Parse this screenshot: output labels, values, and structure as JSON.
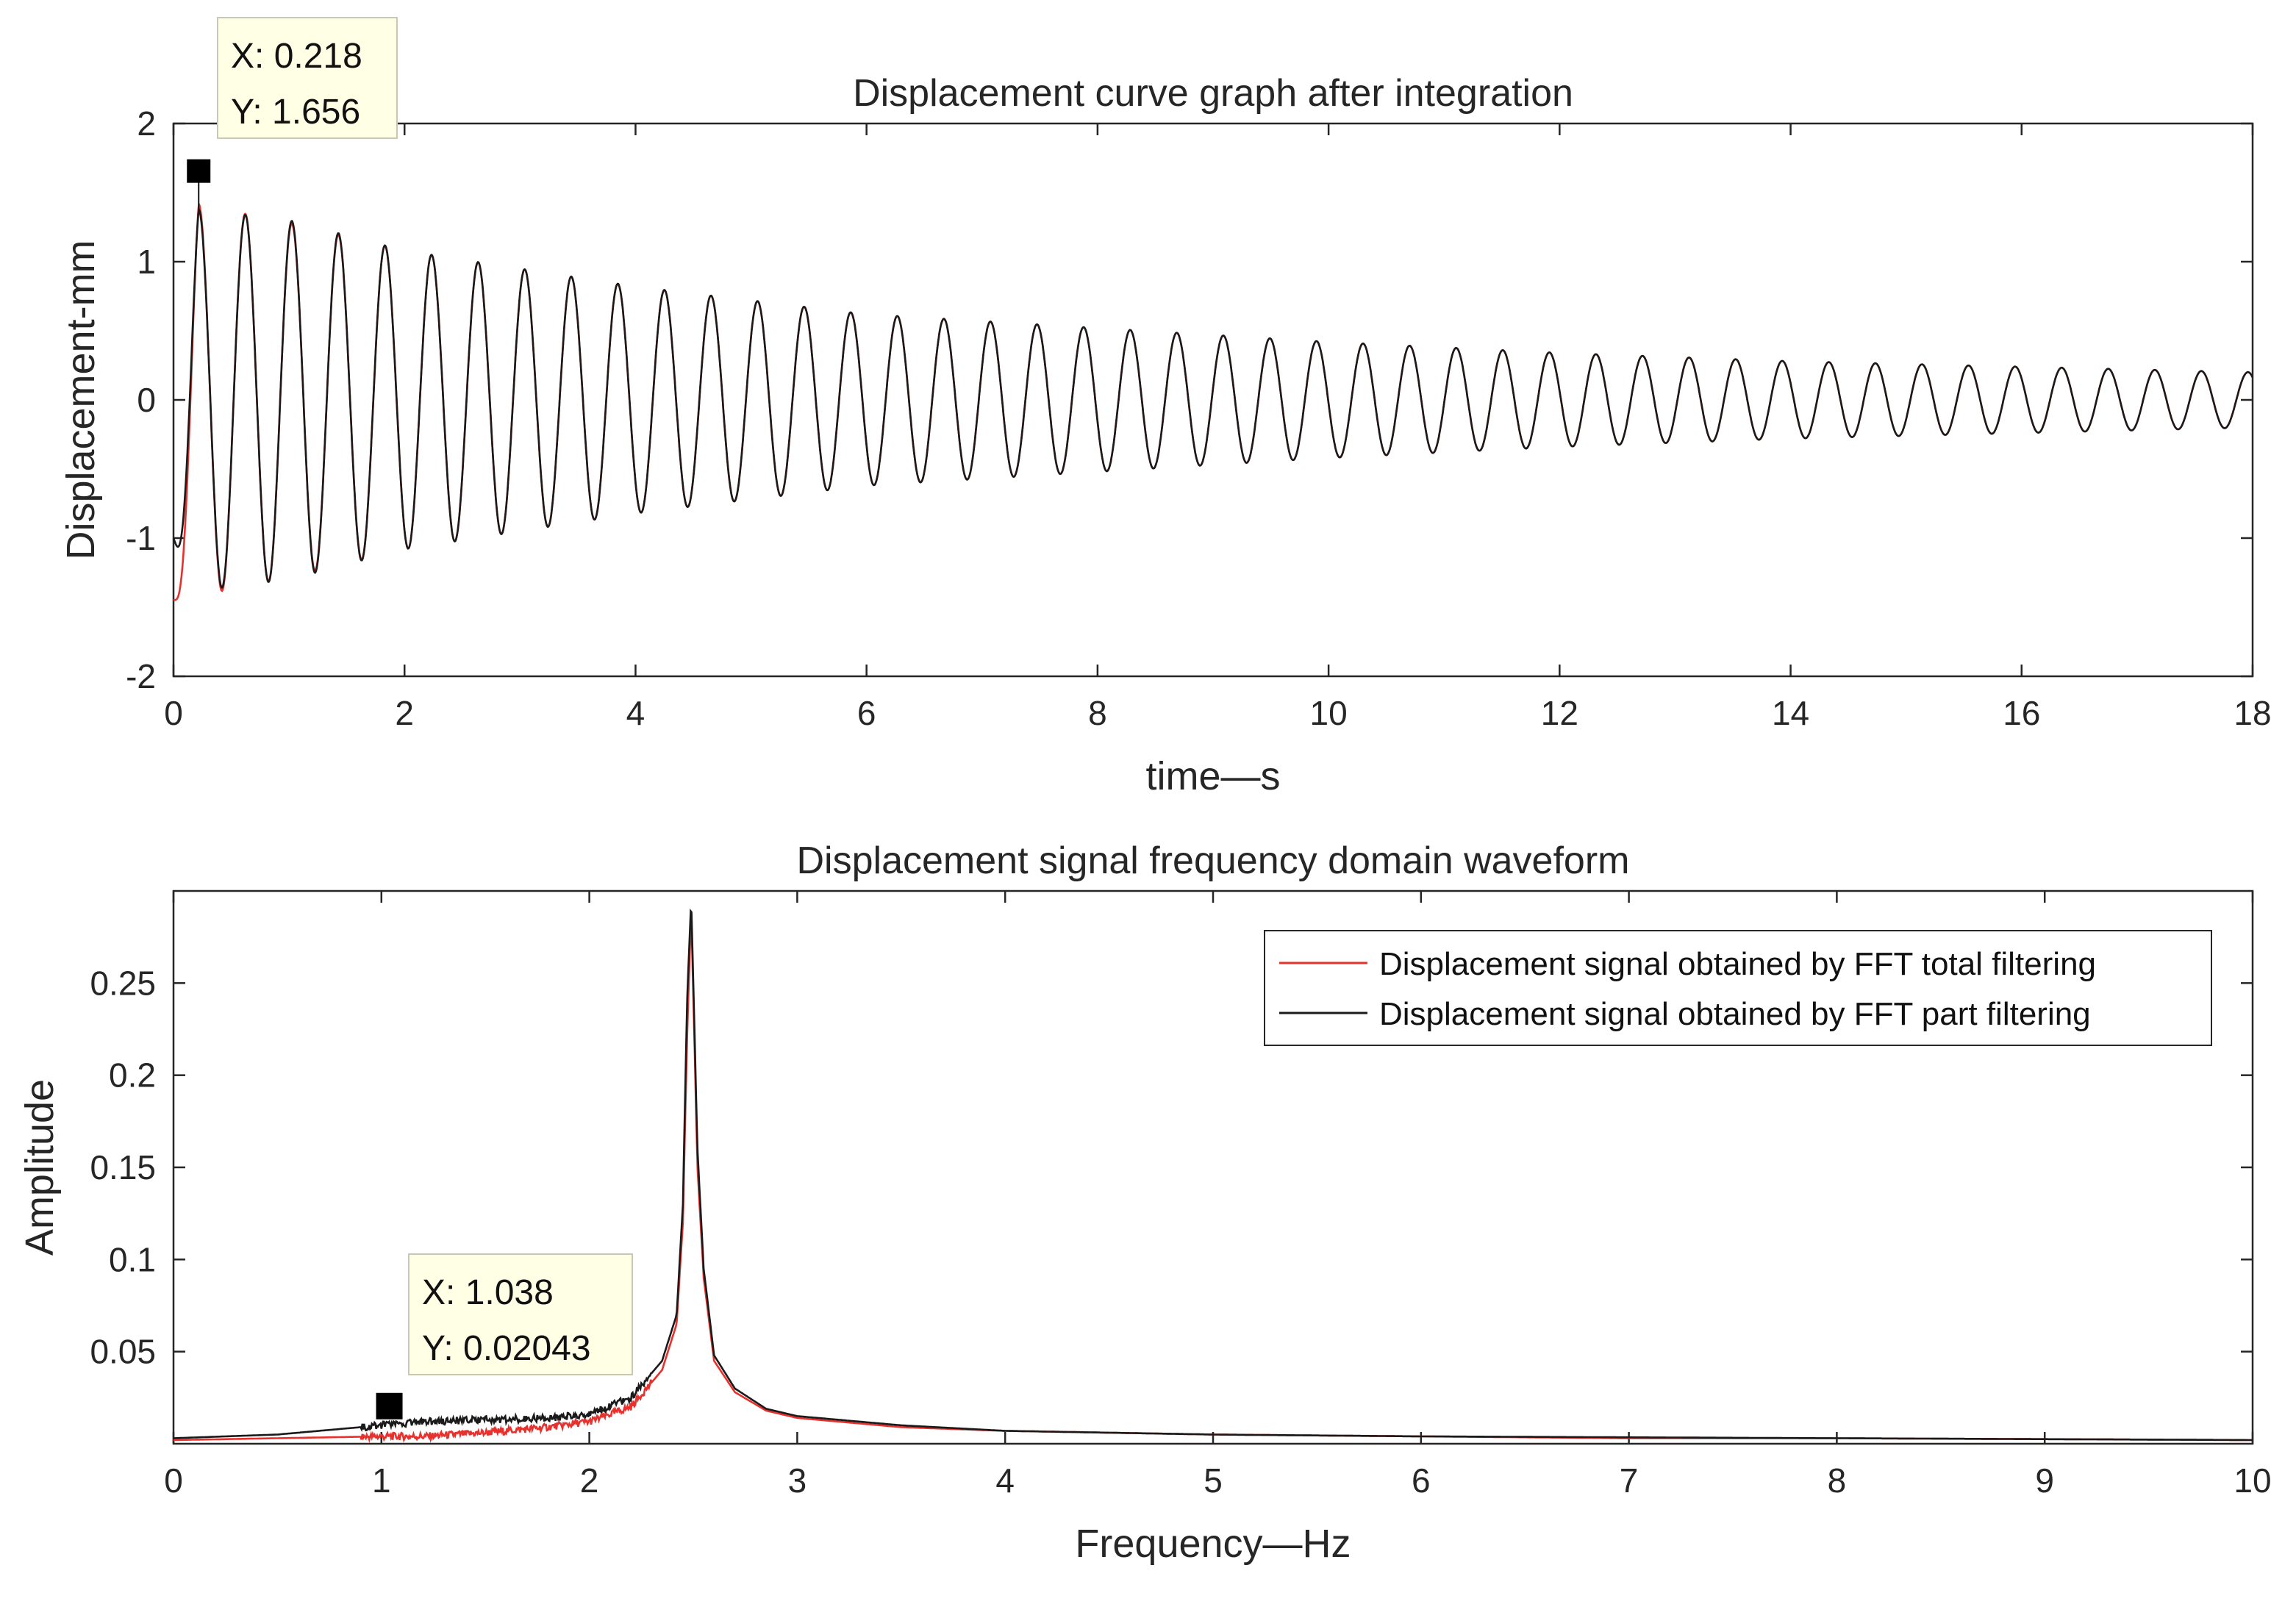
{
  "chart_data": [
    {
      "type": "line",
      "title": "Displacement curve graph after integration",
      "xlabel": "time—s",
      "ylabel": "Displacement-mm",
      "xlim": [
        0,
        18
      ],
      "ylim": [
        -2,
        2
      ],
      "xticks": [
        0,
        2,
        4,
        6,
        8,
        10,
        12,
        14,
        16,
        18
      ],
      "yticks": [
        -2,
        -1,
        0,
        1,
        2
      ],
      "grid": false,
      "series": [
        {
          "name": "Displacement signal obtained by FFT total filtering",
          "color": "#e8312d",
          "model": "damped_sinusoid",
          "frequency_hz": 2.48,
          "start_value": -1.45,
          "envelope_amplitude_mm": [
            [
              0.2,
              1.42
            ],
            [
              1.0,
              1.28
            ],
            [
              2.0,
              1.08
            ],
            [
              4.0,
              0.82
            ],
            [
              6.0,
              0.62
            ],
            [
              8.0,
              0.52
            ],
            [
              10.0,
              0.42
            ],
            [
              12.0,
              0.34
            ],
            [
              14.0,
              0.28
            ],
            [
              16.0,
              0.24
            ],
            [
              18.0,
              0.2
            ]
          ]
        },
        {
          "name": "Displacement signal obtained by FFT part filtering",
          "color": "#1a1a1a",
          "model": "damped_sinusoid",
          "frequency_hz": 2.48,
          "start_value": -1.0,
          "envelope_amplitude_mm": [
            [
              0.2,
              1.38
            ],
            [
              1.0,
              1.3
            ],
            [
              2.0,
              1.08
            ],
            [
              4.0,
              0.82
            ],
            [
              6.0,
              0.62
            ],
            [
              8.0,
              0.52
            ],
            [
              10.0,
              0.42
            ],
            [
              12.0,
              0.34
            ],
            [
              14.0,
              0.28
            ],
            [
              16.0,
              0.24
            ],
            [
              18.0,
              0.2
            ]
          ]
        }
      ],
      "datatip": {
        "x": 0.218,
        "y": 1.656,
        "x_text": "X: 0.218",
        "y_text": "Y: 1.656"
      }
    },
    {
      "type": "line",
      "title": "Displacement signal frequency domain waveform",
      "xlabel": "Frequency—Hz",
      "ylabel": "Amplitude",
      "xlim": [
        0,
        10
      ],
      "ylim": [
        0,
        0.3
      ],
      "xticks": [
        0,
        1,
        2,
        3,
        4,
        5,
        6,
        7,
        8,
        9,
        10
      ],
      "yticks": [
        0.05,
        0.1,
        0.15,
        0.2,
        0.25
      ],
      "grid": false,
      "legend": {
        "location": "top-right",
        "entries": [
          {
            "label": "Displacement signal obtained by FFT total filtering",
            "color": "#e8312d"
          },
          {
            "label": "Displacement signal obtained by FFT part filtering",
            "color": "#1a1a1a"
          }
        ]
      },
      "series": [
        {
          "name": "Displacement signal obtained by FFT total filtering",
          "color": "#e8312d",
          "x": [
            0,
            0.5,
            1.0,
            1.2,
            1.5,
            1.8,
            2.0,
            2.2,
            2.35,
            2.42,
            2.45,
            2.47,
            2.49,
            2.52,
            2.55,
            2.6,
            2.7,
            2.85,
            3.0,
            3.5,
            4.0,
            5.0,
            6.0,
            7.0,
            8.0,
            9.0,
            10.0
          ],
          "y": [
            0.002,
            0.003,
            0.004,
            0.004,
            0.006,
            0.009,
            0.012,
            0.02,
            0.04,
            0.065,
            0.12,
            0.22,
            0.29,
            0.15,
            0.09,
            0.045,
            0.028,
            0.018,
            0.014,
            0.009,
            0.007,
            0.005,
            0.004,
            0.003,
            0.003,
            0.0025,
            0.002
          ]
        },
        {
          "name": "Displacement signal obtained by FFT part filtering",
          "color": "#1a1a1a",
          "x": [
            0,
            0.5,
            1.0,
            1.2,
            1.5,
            1.8,
            2.0,
            2.2,
            2.35,
            2.42,
            2.45,
            2.47,
            2.49,
            2.52,
            2.55,
            2.6,
            2.7,
            2.85,
            3.0,
            3.5,
            4.0,
            5.0,
            6.0,
            7.0,
            8.0,
            9.0,
            10.0
          ],
          "y": [
            0.003,
            0.005,
            0.01,
            0.012,
            0.013,
            0.014,
            0.016,
            0.025,
            0.045,
            0.07,
            0.13,
            0.24,
            0.296,
            0.16,
            0.095,
            0.048,
            0.03,
            0.019,
            0.015,
            0.01,
            0.007,
            0.005,
            0.004,
            0.0035,
            0.003,
            0.0025,
            0.002
          ]
        }
      ],
      "datatip": {
        "x": 1.038,
        "y": 0.02043,
        "x_text": "X: 1.038",
        "y_text": "Y: 0.02043"
      }
    }
  ]
}
